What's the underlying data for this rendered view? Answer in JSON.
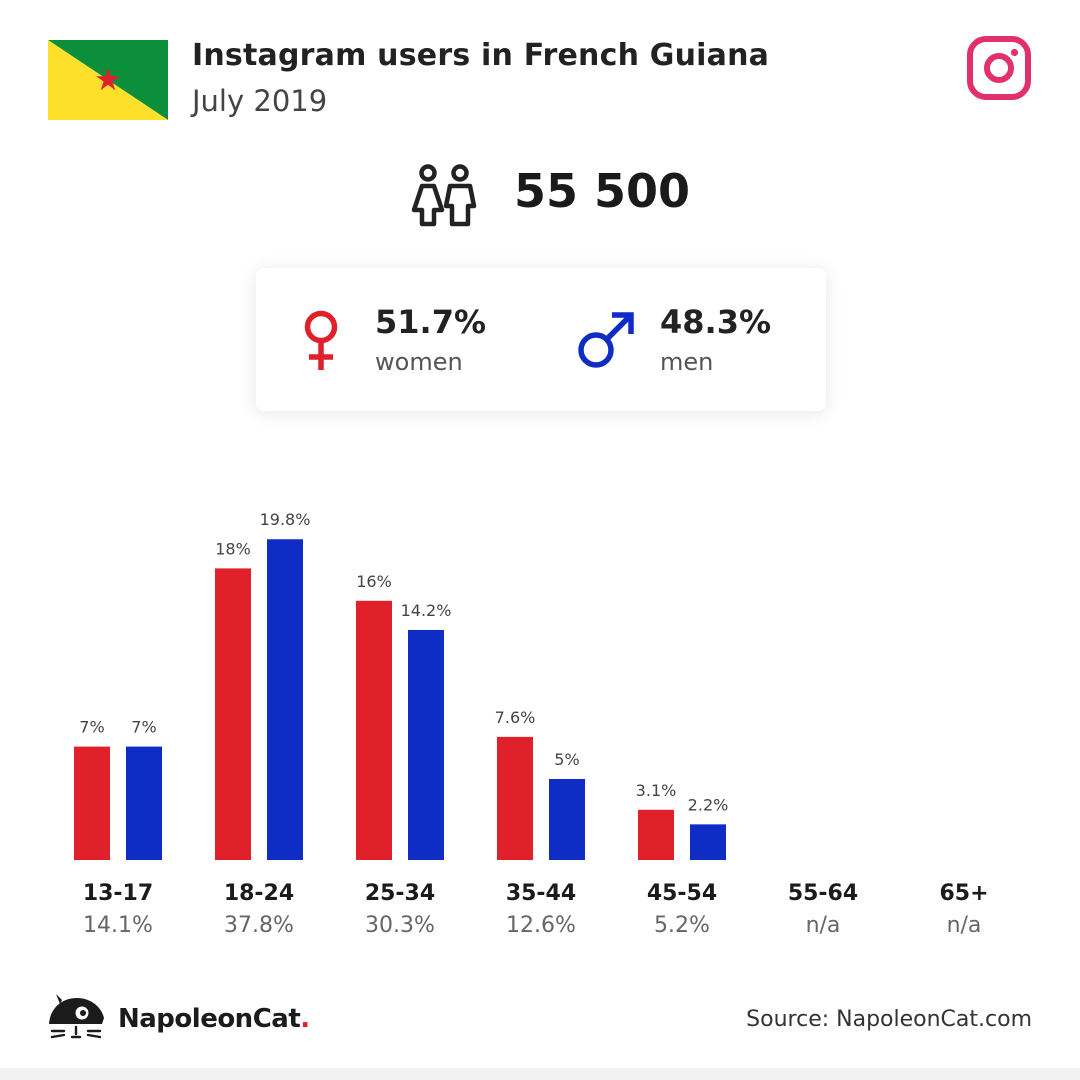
{
  "header": {
    "title": "Instagram users in French Guiana",
    "subtitle": "July 2019"
  },
  "icons": {
    "flag": "french-guiana-flag-icon",
    "brand": "instagram-icon",
    "people": "people-icon",
    "female": "female-symbol-icon",
    "male": "male-symbol-icon",
    "logo": "napoleoncat-logo-icon"
  },
  "total": {
    "value": "55 500"
  },
  "gender": {
    "women": {
      "pct": "51.7%",
      "label": "women"
    },
    "men": {
      "pct": "48.3%",
      "label": "men"
    }
  },
  "colors": {
    "women": "#e0202a",
    "men": "#0f2cc4",
    "instagram": "#e1306c",
    "flag_green": "#0b8f3a",
    "flag_yellow": "#fde02a",
    "flag_star": "#e0202a"
  },
  "chart_data": {
    "type": "bar",
    "categories": [
      "13-17",
      "18-24",
      "25-34",
      "35-44",
      "45-54",
      "55-64",
      "65+"
    ],
    "totals": [
      "14.1%",
      "37.8%",
      "30.3%",
      "12.6%",
      "5.2%",
      "n/a",
      "n/a"
    ],
    "series": [
      {
        "name": "women",
        "values": [
          7,
          18,
          16,
          7.6,
          3.1,
          null,
          null
        ],
        "labels": [
          "7%",
          "18%",
          "16%",
          "7.6%",
          "3.1%",
          "",
          ""
        ]
      },
      {
        "name": "men",
        "values": [
          7,
          19.8,
          14.2,
          5,
          2.2,
          null,
          null
        ],
        "labels": [
          "7%",
          "19.8%",
          "14.2%",
          "5%",
          "2.2%",
          "",
          ""
        ]
      }
    ],
    "ylim": [
      0,
      20
    ],
    "grid": false
  },
  "footer": {
    "logo_text": "NapoleonCat",
    "logo_dot": ".",
    "source": "Source: NapoleonCat.com"
  }
}
